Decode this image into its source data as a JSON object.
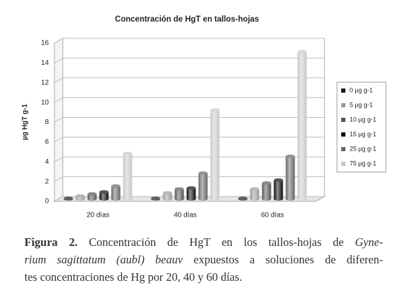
{
  "chart_data": {
    "type": "bar",
    "title": "Concentración de HgT en tallos-hojas",
    "y_label": "µg HgT g-1",
    "categories": [
      "20 días",
      "40 días",
      "60 días"
    ],
    "series": [
      {
        "name": "0 µg g-1",
        "color": "#1a1a1a",
        "values": [
          0.05,
          0.05,
          0.05
        ]
      },
      {
        "name": "5 µg g-1",
        "color": "#9a9a9a",
        "values": [
          0.3,
          0.6,
          1.0
        ]
      },
      {
        "name": "10 µg g-1",
        "color": "#555555",
        "values": [
          0.5,
          1.0,
          1.6
        ]
      },
      {
        "name": "15 µg g-1",
        "color": "#0a0a0a",
        "values": [
          0.7,
          1.1,
          1.9
        ]
      },
      {
        "name": "25 µg g-1",
        "color": "#666666",
        "values": [
          1.3,
          2.6,
          4.3
        ]
      },
      {
        "name": "75 µg g-1",
        "color": "#c8c8c8",
        "values": [
          4.6,
          9.0,
          14.9
        ]
      }
    ],
    "ylim": [
      0,
      16
    ],
    "yticks": [
      0,
      2,
      4,
      6,
      8,
      10,
      12,
      14,
      16
    ],
    "grid": true,
    "legend": "right"
  },
  "caption": {
    "lines": [
      [
        {
          "text": "Figura 2.",
          "style": "bold"
        },
        {
          "text": " Concentración de HgT en los tallos-hojas de ",
          "style": "normal"
        },
        {
          "text": "Gyne-",
          "style": "italic"
        }
      ],
      [
        {
          "text": "rium sagittatum (aubl) beauv",
          "style": "italic"
        },
        {
          "text": " expuestos a soluciones de diferen-",
          "style": "normal"
        }
      ],
      [
        {
          "text": "tes concentraciones de Hg por 20, 40 y 60 días.",
          "style": "normal"
        }
      ]
    ]
  }
}
